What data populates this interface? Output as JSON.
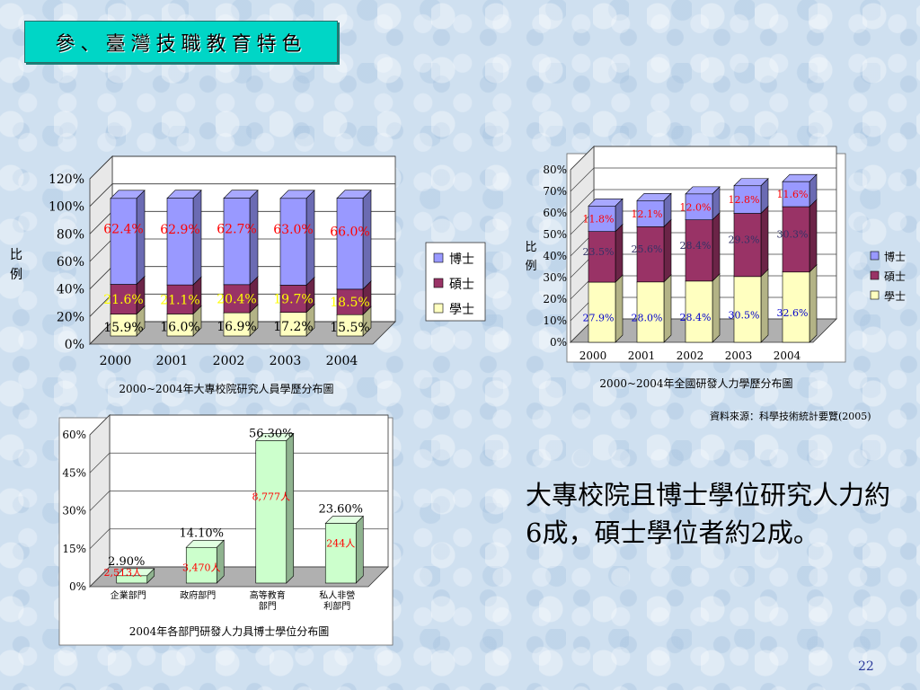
{
  "slide": {
    "title": "參、臺灣技職教育特色",
    "source_note": "資料來源：科學技術統計要覽(2005)",
    "main_text": "大專校院且博士學位研究人力約6成，碩士學位者約2成。",
    "page_number": "22"
  },
  "colors": {
    "bachelor": "#ffffc0",
    "master": "#993366",
    "phd": "#9999ff",
    "edu": "#ccffcc",
    "red_label": "#ff0000",
    "blue_label": "#0000cc"
  },
  "chart_data": [
    {
      "type": "bar",
      "stacked": true,
      "title": "2000~2004年大專校院研究人員學歷分布圖",
      "ylabel": "比例",
      "ylim": [
        0,
        120
      ],
      "yticks": [
        "0%",
        "20%",
        "40%",
        "60%",
        "80%",
        "100%",
        "120%"
      ],
      "categories": [
        "2000",
        "2001",
        "2002",
        "2003",
        "2004"
      ],
      "series": [
        {
          "name": "學士",
          "values": [
            15.9,
            16.0,
            16.9,
            17.2,
            15.5
          ],
          "labels": [
            "15.9%",
            "16.0%",
            "16.9%",
            "17.2%",
            "15.5%"
          ]
        },
        {
          "name": "碩士",
          "values": [
            21.6,
            21.1,
            20.4,
            19.7,
            18.5
          ],
          "labels": [
            "21.6%",
            "21.1%",
            "20.4%",
            "19.7%",
            "18.5%"
          ]
        },
        {
          "name": "博士",
          "values": [
            62.4,
            62.9,
            62.7,
            63.0,
            66.0
          ],
          "labels": [
            "62.4%",
            "62.9%",
            "62.7%",
            "63.0%",
            "66.0%"
          ]
        }
      ],
      "legend": [
        "博士",
        "碩士",
        "學士"
      ],
      "legend_position": "right"
    },
    {
      "type": "bar",
      "stacked": true,
      "title": "2000~2004年全國研發人力學歷分布圖",
      "ylabel": "比例",
      "ylim": [
        0,
        80
      ],
      "yticks": [
        "0%",
        "10%",
        "20%",
        "30%",
        "40%",
        "50%",
        "60%",
        "70%",
        "80%"
      ],
      "categories": [
        "2000",
        "2001",
        "2002",
        "2003",
        "2004"
      ],
      "series": [
        {
          "name": "學士",
          "values": [
            27.9,
            28.0,
            28.4,
            30.5,
            32.6
          ],
          "labels": [
            "27.9%",
            "28.0%",
            "28.4%",
            "30.5%",
            "32.6%"
          ]
        },
        {
          "name": "碩士",
          "values": [
            23.5,
            25.6,
            28.4,
            29.3,
            30.3
          ],
          "labels": [
            "23.5%",
            "25.6%",
            "28.4%",
            "29.3%",
            "30.3%"
          ]
        },
        {
          "name": "博士",
          "values": [
            11.8,
            12.1,
            12.0,
            12.8,
            11.6
          ],
          "labels": [
            "11.8%",
            "12.1%",
            "12.0%",
            "12.8%",
            "11.6%"
          ]
        }
      ],
      "legend": [
        "博士",
        "碩士",
        "學士"
      ],
      "legend_position": "right"
    },
    {
      "type": "bar",
      "title": "2004年各部門研發人力具博士學位分布圖",
      "ylim": [
        0,
        60
      ],
      "yticks": [
        "0%",
        "15%",
        "30%",
        "45%",
        "60%"
      ],
      "categories": [
        [
          "企業部門"
        ],
        [
          "政府部門"
        ],
        [
          "高等教育",
          "部門"
        ],
        [
          "私人非營",
          "利部門"
        ]
      ],
      "values": [
        2.9,
        14.1,
        56.3,
        23.6
      ],
      "value_labels": [
        "2.90%",
        "14.10%",
        "56.30%",
        "23.60%"
      ],
      "count_labels": [
        "2,513人",
        "3,470人",
        "8,777人",
        "244人"
      ]
    }
  ]
}
